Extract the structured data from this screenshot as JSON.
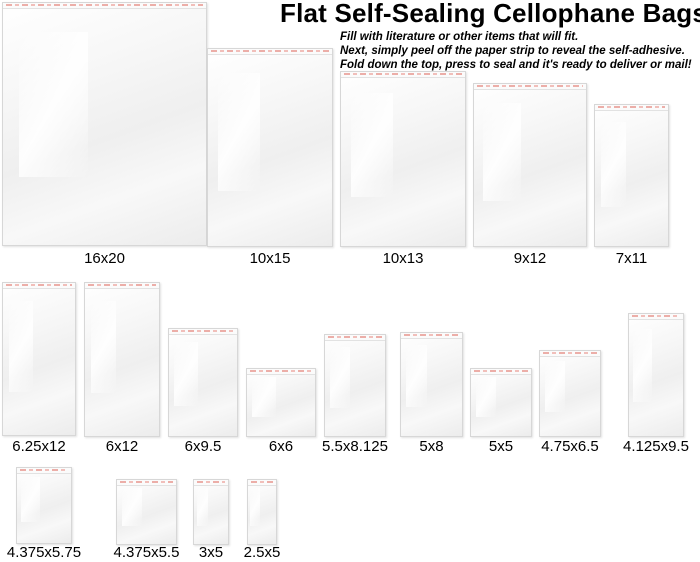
{
  "title": "Flat Self-Sealing Cellophane Bags",
  "description": [
    "Fill with literature or other items that will fit.",
    "Next, simply peel off the paper strip to reveal the self-adhesive.",
    "Fold down the top, press to seal and it's ready to deliver or mail!"
  ],
  "bags": [
    {
      "size": "16x20"
    },
    {
      "size": "10x15"
    },
    {
      "size": "10x13"
    },
    {
      "size": "9x12"
    },
    {
      "size": "7x11"
    },
    {
      "size": "6.25x12"
    },
    {
      "size": "6x12"
    },
    {
      "size": "6x9.5"
    },
    {
      "size": "6x6"
    },
    {
      "size": "5.5x8.125"
    },
    {
      "size": "5x8"
    },
    {
      "size": "5x5"
    },
    {
      "size": "4.75x6.5"
    },
    {
      "size": "4.125x9.5"
    },
    {
      "size": "4.375x5.75"
    },
    {
      "size": "4.375x5.5"
    },
    {
      "size": "3x5"
    },
    {
      "size": "2.5x5"
    }
  ]
}
